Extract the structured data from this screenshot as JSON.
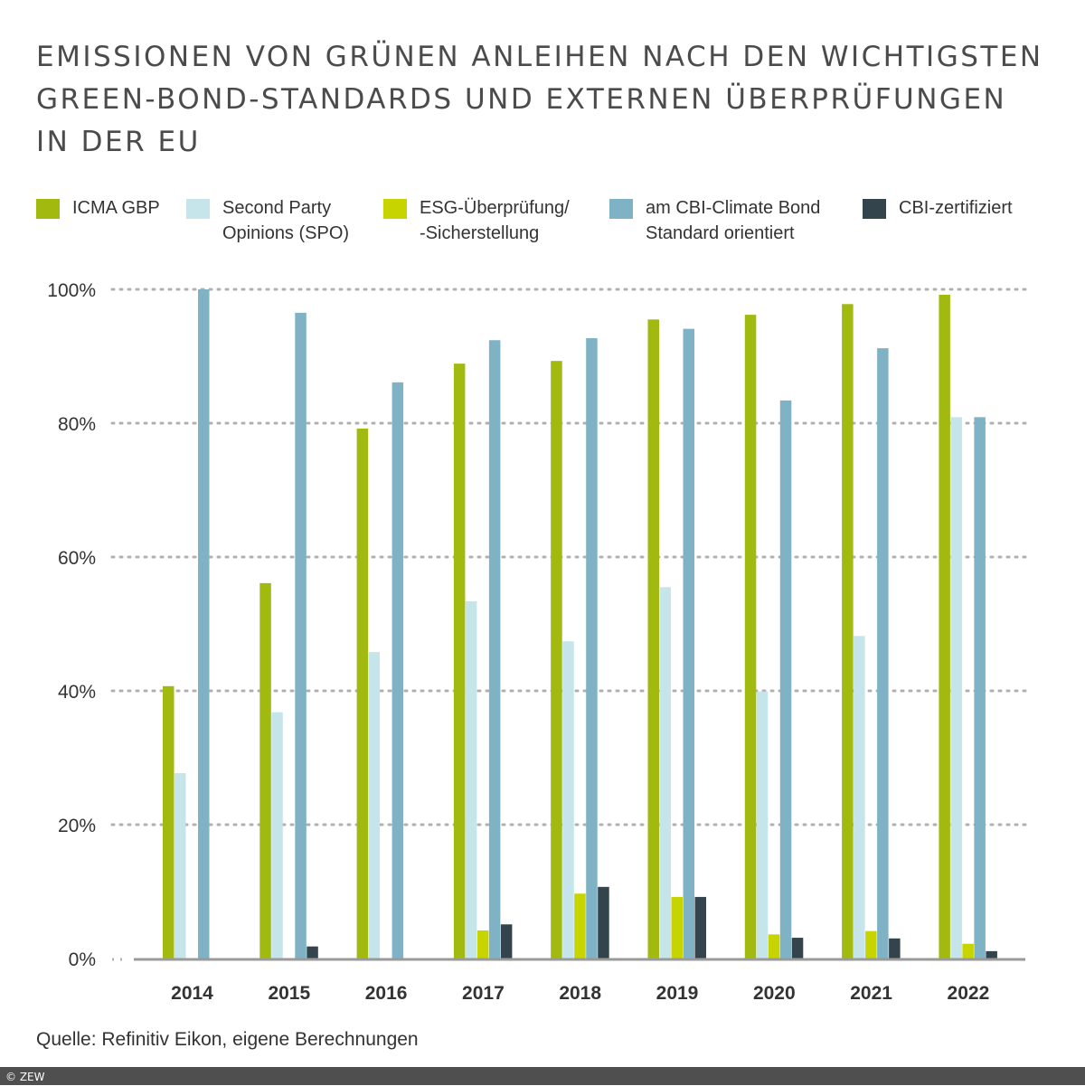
{
  "chart_data": {
    "type": "bar",
    "title": [
      "EMISSIONEN VON GRÜNEN ANLEIHEN NACH DEN WICHTIGSTEN",
      "GREEN-BOND-STANDARDS UND EXTERNEN ÜBERPRÜFUNGEN",
      "IN DER EU"
    ],
    "categories": [
      "2014",
      "2015",
      "2016",
      "2017",
      "2018",
      "2019",
      "2020",
      "2021",
      "2022"
    ],
    "series": [
      {
        "name": "ICMA GBP",
        "color": "#a2b90f",
        "values": [
          40.7,
          56.1,
          79.2,
          88.9,
          89.3,
          95.5,
          96.2,
          97.8,
          99.2
        ]
      },
      {
        "name": "Second Party Opinions (SPO)",
        "color": "#c5e5ea",
        "values": [
          27.7,
          36.8,
          45.8,
          53.4,
          47.4,
          55.5,
          39.9,
          48.2,
          80.9
        ]
      },
      {
        "name": "ESG-Überprüfung/ -Sicherstellung",
        "color": "#c8d400",
        "values": [
          0,
          0,
          0,
          4.2,
          9.7,
          9.2,
          3.6,
          4.1,
          2.2
        ]
      },
      {
        "name": "am CBI-Climate Bond Standard orientiert",
        "color": "#7fb2c5",
        "values": [
          100,
          96.5,
          86.1,
          92.4,
          92.7,
          94.1,
          83.4,
          91.2,
          80.9
        ]
      },
      {
        "name": "CBI-zertifiziert",
        "color": "#34444d",
        "values": [
          0,
          1.8,
          0,
          5.1,
          10.7,
          9.2,
          3.1,
          3.0,
          1.1
        ]
      }
    ],
    "legend_lines": [
      [
        "ICMA GBP"
      ],
      [
        "Second Party",
        "Opinions (SPO)"
      ],
      [
        "ESG-Überprüfung/",
        "-Sicherstellung"
      ],
      [
        "am CBI-Climate Bond",
        "Standard orientiert"
      ],
      [
        "CBI-zertifiziert"
      ]
    ],
    "yticks": [
      "0%",
      "20%",
      "40%",
      "60%",
      "80%",
      "100%"
    ],
    "ylim": [
      0,
      100
    ],
    "grid": true,
    "legend_placement": "top",
    "xlabel": "",
    "ylabel": ""
  },
  "source": "Quelle: Refinitiv Eikon, eigene Berechnungen",
  "footer": "© ZEW"
}
